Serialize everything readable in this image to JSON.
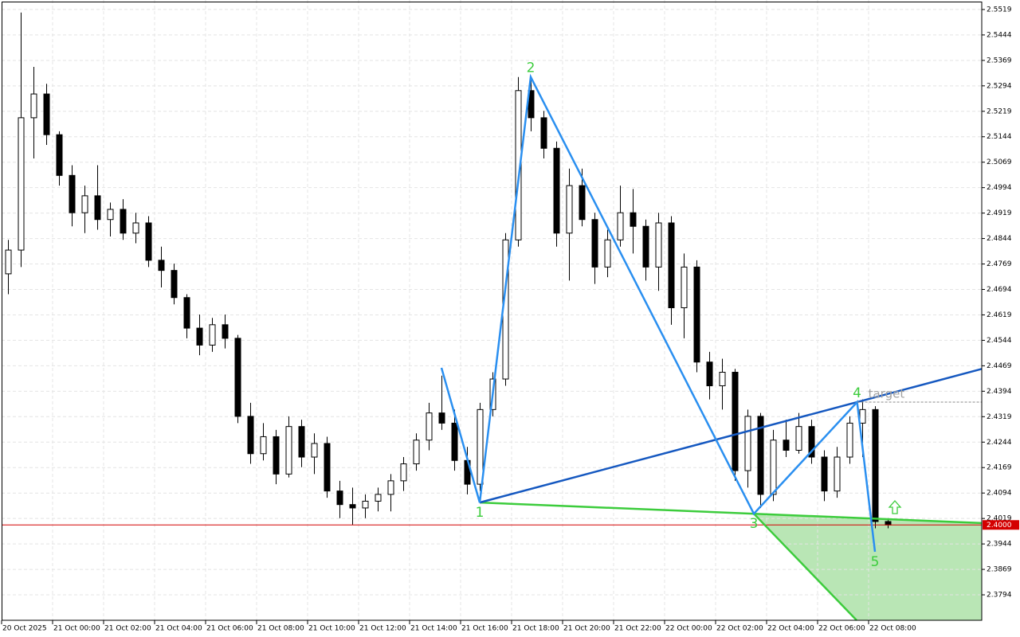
{
  "chart_data": {
    "type": "candlestick",
    "categories": [
      "20 Oct 2025",
      null,
      null,
      null,
      "21 Oct 00:00",
      null,
      null,
      null,
      "21 Oct 02:00",
      null,
      null,
      null,
      "21 Oct 04:00",
      null,
      null,
      null,
      "21 Oct 06:00",
      null,
      null,
      null,
      "21 Oct 08:00",
      null,
      null,
      null,
      "21 Oct 10:00",
      null,
      null,
      null,
      "21 Oct 12:00",
      null,
      null,
      null,
      "21 Oct 14:00",
      null,
      null,
      null,
      "21 Oct 16:00",
      null,
      null,
      null,
      "21 Oct 18:00",
      null,
      null,
      null,
      "21 Oct 20:00",
      null,
      null,
      null,
      "21 Oct 22:00",
      null,
      null,
      null,
      "22 Oct 00:00",
      null,
      null,
      null,
      "22 Oct 02:00",
      null,
      null,
      null,
      "22 Oct 04:00",
      null,
      null,
      null,
      "22 Oct 06:00",
      null,
      null,
      null,
      "22 Oct 08:00",
      null
    ],
    "open": [
      2.474,
      2.481,
      2.52,
      2.527,
      2.515,
      2.503,
      2.492,
      2.497,
      2.49,
      2.493,
      2.486,
      2.489,
      2.478,
      2.475,
      2.467,
      2.458,
      2.453,
      2.459,
      2.455,
      2.432,
      2.421,
      2.426,
      2.415,
      2.429,
      2.42,
      2.424,
      2.41,
      2.406,
      2.405,
      2.407,
      2.409,
      2.413,
      2.418,
      2.425,
      2.433,
      2.43,
      2.419,
      2.412,
      2.434,
      2.443,
      2.484,
      2.528,
      2.52,
      2.511,
      2.486,
      2.5,
      2.49,
      2.476,
      2.484,
      2.492,
      2.488,
      2.476,
      2.489,
      2.464,
      2.476,
      2.448,
      2.441,
      2.445,
      2.416,
      2.432,
      2.409,
      2.425,
      2.422,
      2.429,
      2.42,
      2.41,
      2.42,
      2.43,
      2.434,
      2.401
    ],
    "high": [
      2.484,
      2.551,
      2.535,
      2.53,
      2.516,
      2.506,
      2.5,
      2.506,
      2.495,
      2.496,
      2.492,
      2.491,
      2.482,
      2.477,
      2.468,
      2.462,
      2.461,
      2.462,
      2.456,
      2.436,
      2.43,
      2.428,
      2.432,
      2.431,
      2.427,
      2.426,
      2.413,
      2.411,
      2.409,
      2.411,
      2.415,
      2.42,
      2.427,
      2.436,
      2.444,
      2.434,
      2.423,
      2.436,
      2.445,
      2.486,
      2.532,
      2.532,
      2.522,
      2.513,
      2.505,
      2.505,
      2.492,
      2.487,
      2.5,
      2.499,
      2.49,
      2.492,
      2.491,
      2.48,
      2.478,
      2.451,
      2.449,
      2.446,
      2.434,
      2.433,
      2.428,
      2.431,
      2.433,
      2.431,
      2.422,
      2.423,
      2.432,
      2.437,
      2.435,
      2.402
    ],
    "low": [
      2.468,
      2.476,
      2.508,
      2.512,
      2.5,
      2.488,
      2.486,
      2.487,
      2.485,
      2.484,
      2.483,
      2.476,
      2.47,
      2.465,
      2.455,
      2.45,
      2.451,
      2.452,
      2.43,
      2.418,
      2.419,
      2.412,
      2.414,
      2.417,
      2.415,
      2.408,
      2.402,
      2.4,
      2.402,
      2.404,
      2.404,
      2.41,
      2.416,
      2.422,
      2.428,
      2.416,
      2.409,
      2.41,
      2.432,
      2.441,
      2.482,
      2.516,
      2.508,
      2.482,
      2.472,
      2.488,
      2.471,
      2.473,
      2.482,
      2.48,
      2.472,
      2.469,
      2.459,
      2.455,
      2.445,
      2.437,
      2.434,
      2.413,
      2.411,
      2.405,
      2.407,
      2.42,
      2.421,
      2.418,
      2.407,
      2.408,
      2.418,
      2.42,
      2.399,
      2.399
    ],
    "close": [
      2.481,
      2.52,
      2.527,
      2.515,
      2.503,
      2.492,
      2.497,
      2.49,
      2.493,
      2.486,
      2.489,
      2.478,
      2.475,
      2.467,
      2.458,
      2.453,
      2.459,
      2.455,
      2.432,
      2.421,
      2.426,
      2.415,
      2.429,
      2.42,
      2.424,
      2.41,
      2.406,
      2.405,
      2.407,
      2.409,
      2.413,
      2.418,
      2.425,
      2.433,
      2.43,
      2.419,
      2.412,
      2.434,
      2.443,
      2.484,
      2.528,
      2.52,
      2.511,
      2.486,
      2.5,
      2.49,
      2.476,
      2.484,
      2.492,
      2.488,
      2.476,
      2.489,
      2.464,
      2.476,
      2.448,
      2.441,
      2.445,
      2.416,
      2.432,
      2.409,
      2.425,
      2.422,
      2.429,
      2.42,
      2.41,
      2.42,
      2.43,
      2.434,
      2.401,
      2.4
    ],
    "ylim": [
      2.3719,
      2.5547
    ],
    "yticks": [
      2.5519,
      2.5444,
      2.5369,
      2.5294,
      2.5219,
      2.5144,
      2.5069,
      2.4994,
      2.4919,
      2.4844,
      2.4769,
      2.4694,
      2.4619,
      2.4544,
      2.4469,
      2.4394,
      2.4319,
      2.4244,
      2.4169,
      2.4094,
      2.4019,
      2.3944,
      2.3869,
      2.3794
    ],
    "grid": true,
    "current_price": {
      "value": 2.4,
      "label": "2.4000",
      "color": "#d40000"
    },
    "pattern": {
      "points": [
        {
          "label": null,
          "x": 34,
          "y": 2.4463
        },
        {
          "label": "1",
          "x": 37,
          "y": 2.4066
        },
        {
          "label": "2",
          "x": 41,
          "y": 2.532
        },
        {
          "label": "3",
          "x": 58.5,
          "y": 2.4033
        },
        {
          "label": "4",
          "x": 66.6,
          "y": 2.4362
        },
        {
          "label": "5",
          "x": 68,
          "y": 2.3921
        }
      ],
      "wave_color": "#2a8ff0",
      "upper_line_color": "#1558c0",
      "lower_line_color": "#3ccc3c",
      "label_color": "#3ccc3c",
      "target": {
        "label": "target",
        "value": 2.4362,
        "color": "#a0a0a0"
      }
    }
  }
}
